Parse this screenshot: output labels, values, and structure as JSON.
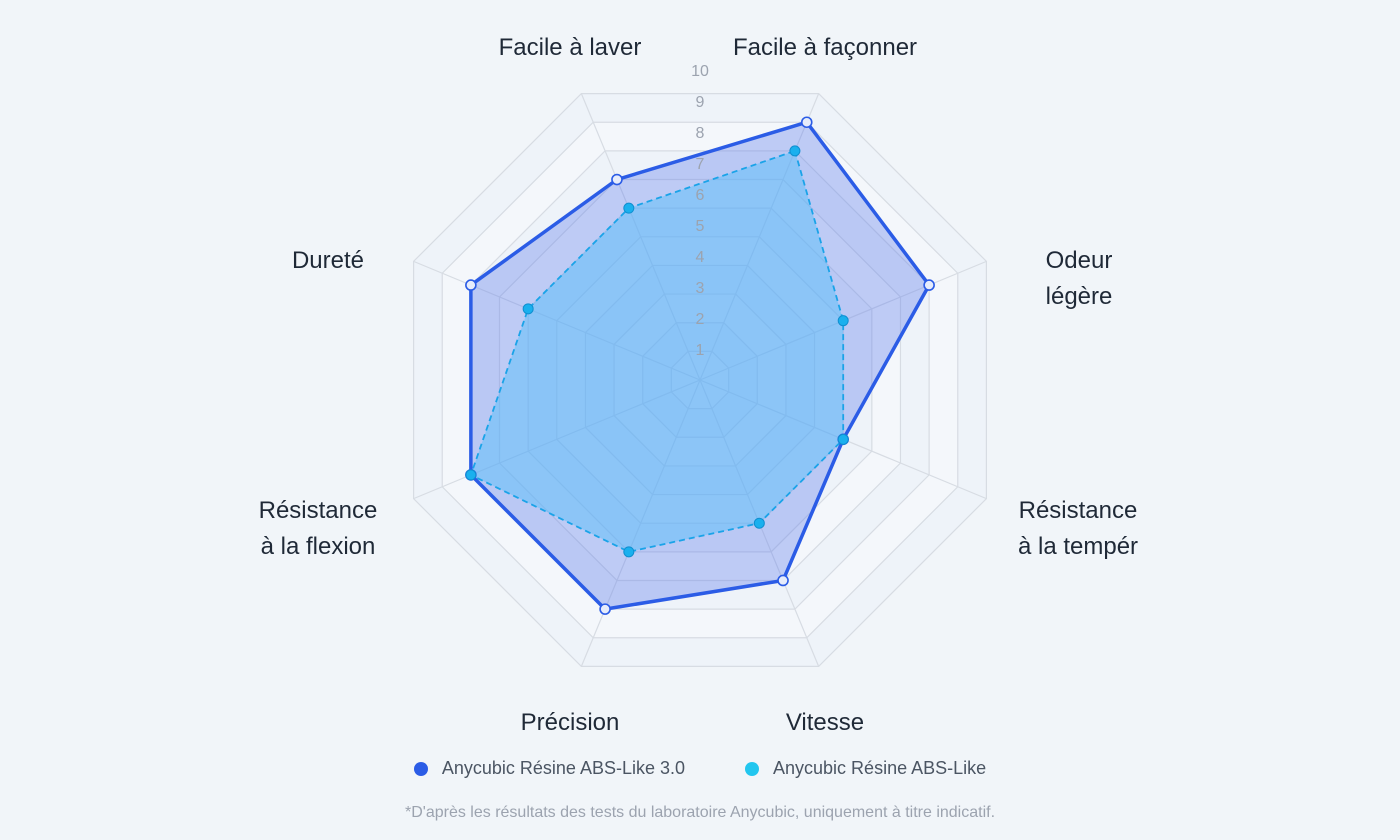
{
  "chart_data": {
    "type": "radar",
    "axes": [
      "Facile à façonner",
      "Odeur légère",
      "Résistance à la tempér",
      "Vitesse",
      "Précision",
      "Résistance à la flexion",
      "Dureté",
      "Facile à laver"
    ],
    "axis_label_lines": [
      [
        "Facile à façonner"
      ],
      [
        "Odeur",
        "légère"
      ],
      [
        "Résistance",
        "à la tempér"
      ],
      [
        "Vitesse"
      ],
      [
        "Précision"
      ],
      [
        "Résistance",
        "à la flexion"
      ],
      [
        "Dureté"
      ],
      [
        "Facile à laver"
      ]
    ],
    "range": [
      0,
      10
    ],
    "ticks": [
      "1",
      "2",
      "3",
      "4",
      "5",
      "6",
      "7",
      "8",
      "9",
      "10"
    ],
    "series": [
      {
        "name": "Anycubic Résine ABS-Like 3.0",
        "color": "#2b5ce6",
        "fill": "rgba(88, 120, 235, 0.35)",
        "line": "solid",
        "values": [
          9,
          8,
          5,
          7,
          8,
          8,
          8,
          7
        ]
      },
      {
        "name": "Anycubic Résine ABS-Like",
        "color": "#1aa3e8",
        "fill": "rgba(80, 190, 250, 0.45)",
        "line": "dashed",
        "values": [
          8,
          5,
          5,
          5,
          6,
          8,
          6,
          6
        ]
      }
    ],
    "grid": true
  },
  "legend": {
    "items": [
      {
        "label": "Anycubic Résine ABS-Like 3.0",
        "color": "#2b5ce6"
      },
      {
        "label": "Anycubic Résine ABS-Like",
        "color": "#22c6ef"
      }
    ]
  },
  "footnote": "*D'après les résultats des tests du laboratoire Anycubic, uniquement à titre indicatif."
}
